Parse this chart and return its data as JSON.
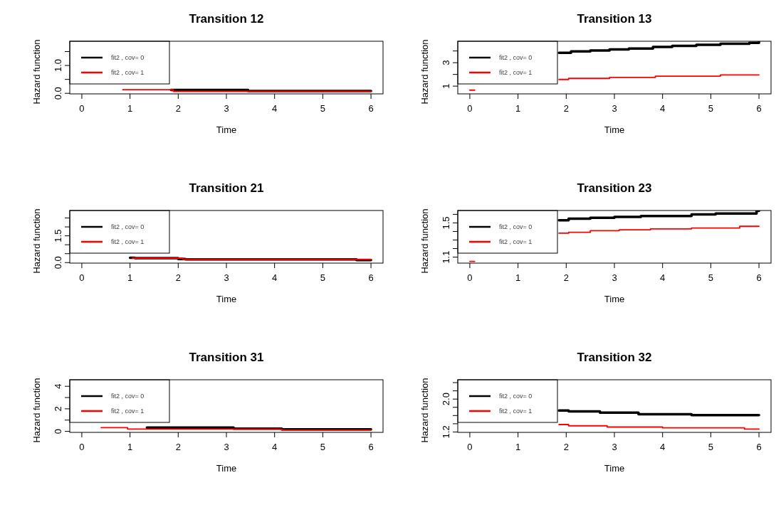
{
  "chart_data": [
    {
      "type": "step",
      "title": "Transition 12",
      "xlabel": "Time",
      "ylabel": "Hazard function",
      "xlim": [
        -0.25,
        6.25
      ],
      "xticks": [
        0,
        1,
        2,
        3,
        4,
        5,
        6
      ],
      "ylim": [
        -0.02,
        1.87
      ],
      "yticks": [
        {
          "value": 0,
          "label": "0.0"
        },
        {
          "value": 0.5,
          "label": null
        },
        {
          "value": 1,
          "label": "1.0"
        },
        {
          "value": 1.5,
          "label": null
        }
      ],
      "legend": "top left",
      "series": [
        {
          "name": "fit2 , cov= 0",
          "color": "#000000",
          "x": [
            1.85,
            3.45,
            6
          ],
          "values": [
            0.12,
            0.08,
            0.08
          ]
        },
        {
          "name": "fit2 , cov= 1",
          "color": "#ff0000",
          "x": [
            0.85,
            1.9,
            6
          ],
          "values": [
            0.13,
            0.07,
            0.07
          ]
        }
      ]
    },
    {
      "type": "step",
      "title": "Transition 13",
      "xlabel": "Time",
      "ylabel": "Hazard function",
      "xlim": [
        -0.25,
        6.25
      ],
      "xticks": [
        0,
        1,
        2,
        3,
        4,
        5,
        6
      ],
      "ylim": [
        0.34,
        4.83
      ],
      "yticks": [
        1,
        {
          "value": 2,
          "label": null
        },
        3,
        {
          "value": 4,
          "label": null
        }
      ],
      "legend": "top left",
      "series": [
        {
          "name": "fit2 , cov= 0",
          "color": "#000000",
          "x": [
            1.85,
            2.1,
            2.5,
            2.9,
            3.3,
            3.8,
            4.2,
            4.7,
            5.2,
            5.8,
            6.0
          ],
          "values": [
            3.85,
            3.96,
            4.04,
            4.13,
            4.21,
            4.34,
            4.43,
            4.53,
            4.62,
            4.7,
            4.78
          ]
        },
        {
          "name": "fit2 , cov= 1",
          "color": "#ff0000",
          "x": [
            0,
            0.1,
            0.12,
            1.85,
            2.05,
            2.9,
            3.85,
            5.2,
            6
          ],
          "values": [
            0.66,
            0.66,
            null,
            1.57,
            1.66,
            1.74,
            1.85,
            1.96,
            1.96
          ]
        }
      ]
    },
    {
      "type": "step",
      "title": "Transition 21",
      "xlabel": "Time",
      "ylabel": "Hazard function",
      "xlim": [
        -0.25,
        6.25
      ],
      "xticks": [
        0,
        1,
        2,
        3,
        4,
        5,
        6
      ],
      "ylim": [
        -0.03,
        2.92
      ],
      "yticks": [
        {
          "value": 0,
          "label": "0.0"
        },
        {
          "value": 0.5,
          "label": null
        },
        {
          "value": 1,
          "label": null
        },
        {
          "value": 1.5,
          "label": "1.5"
        },
        {
          "value": 2,
          "label": null
        },
        {
          "value": 2.5,
          "label": null
        }
      ],
      "legend": "top left",
      "series": [
        {
          "name": "fit2 , cov= 0",
          "color": "#000000",
          "x": [
            1.0,
            1.1,
            2.0,
            2.15,
            5.7,
            6
          ],
          "values": [
            0.27,
            0.25,
            0.2,
            0.18,
            0.14,
            0.14
          ]
        },
        {
          "name": "fit2 , cov= 1",
          "color": "#ff0000",
          "x": [
            1.05,
            2.1,
            6
          ],
          "values": [
            0.25,
            0.18,
            0.18
          ]
        }
      ]
    },
    {
      "type": "step",
      "title": "Transition 23",
      "xlabel": "Time",
      "ylabel": "Hazard function",
      "xlim": [
        -0.25,
        6.25
      ],
      "xticks": [
        0,
        1,
        2,
        3,
        4,
        5,
        6
      ],
      "ylim": [
        1.03,
        1.645
      ],
      "yticks": [
        1.1,
        {
          "value": 1.2,
          "label": null
        },
        {
          "value": 1.3,
          "label": null
        },
        {
          "value": 1.4,
          "label": null
        },
        1.5,
        {
          "value": 1.6,
          "label": null
        }
      ],
      "legend": "top left",
      "series": [
        {
          "name": "fit2 , cov= 0",
          "color": "#000000",
          "x": [
            1.85,
            2.05,
            2.5,
            3.0,
            3.55,
            4.6,
            5.1,
            5.95,
            6
          ],
          "values": [
            1.53,
            1.55,
            1.56,
            1.57,
            1.58,
            1.6,
            1.61,
            1.64,
            1.64
          ]
        },
        {
          "name": "fit2 , cov= 1",
          "color": "#ff0000",
          "x": [
            0,
            0.1,
            0.12,
            1.85,
            2.05,
            2.5,
            3.1,
            3.75,
            4.6,
            5.6,
            6
          ],
          "values": [
            1.05,
            1.05,
            null,
            1.38,
            1.39,
            1.41,
            1.42,
            1.43,
            1.44,
            1.46,
            1.46
          ]
        }
      ]
    },
    {
      "type": "step",
      "title": "Transition 31",
      "xlabel": "Time",
      "ylabel": "Hazard function",
      "xlim": [
        -0.25,
        6.25
      ],
      "xticks": [
        0,
        1,
        2,
        3,
        4,
        5,
        6
      ],
      "ylim": [
        -0.09,
        4.58
      ],
      "yticks": [
        0,
        {
          "value": 1,
          "label": null
        },
        2,
        {
          "value": 3,
          "label": null
        },
        4
      ],
      "legend": "top left",
      "series": [
        {
          "name": "fit2 , cov= 0",
          "color": "#000000",
          "x": [
            1.35,
            3.15,
            4.15,
            6
          ],
          "values": [
            0.33,
            0.24,
            0.18,
            0.18
          ]
        },
        {
          "name": "fit2 , cov= 1",
          "color": "#ff0000",
          "x": [
            0.4,
            0.95,
            4.15,
            6
          ],
          "values": [
            0.33,
            0.2,
            0.11,
            0.11
          ]
        }
      ]
    },
    {
      "type": "step",
      "title": "Transition 32",
      "xlabel": "Time",
      "ylabel": "Hazard function",
      "xlim": [
        -0.25,
        6.25
      ],
      "xticks": [
        0,
        1,
        2,
        3,
        4,
        5,
        6
      ],
      "ylim": [
        1.19,
        2.47
      ],
      "yticks": [
        1.2,
        {
          "value": 1.4,
          "label": null
        },
        {
          "value": 1.6,
          "label": null
        },
        {
          "value": 1.8,
          "label": null
        },
        {
          "value": 2,
          "label": "2.0"
        },
        {
          "value": 2.2,
          "label": null
        },
        {
          "value": 2.4,
          "label": null
        }
      ],
      "legend": "top left",
      "series": [
        {
          "name": "fit2 , cov= 0",
          "color": "#000000",
          "x": [
            1.85,
            2.05,
            2.7,
            3.5,
            4.6,
            6
          ],
          "values": [
            1.72,
            1.7,
            1.67,
            1.63,
            1.61,
            1.61
          ]
        },
        {
          "name": "fit2 , cov= 1",
          "color": "#ff0000",
          "x": [
            1.85,
            2.05,
            2.85,
            4.0,
            5.7,
            6
          ],
          "values": [
            1.38,
            1.35,
            1.32,
            1.3,
            1.27,
            1.27
          ]
        }
      ]
    }
  ]
}
